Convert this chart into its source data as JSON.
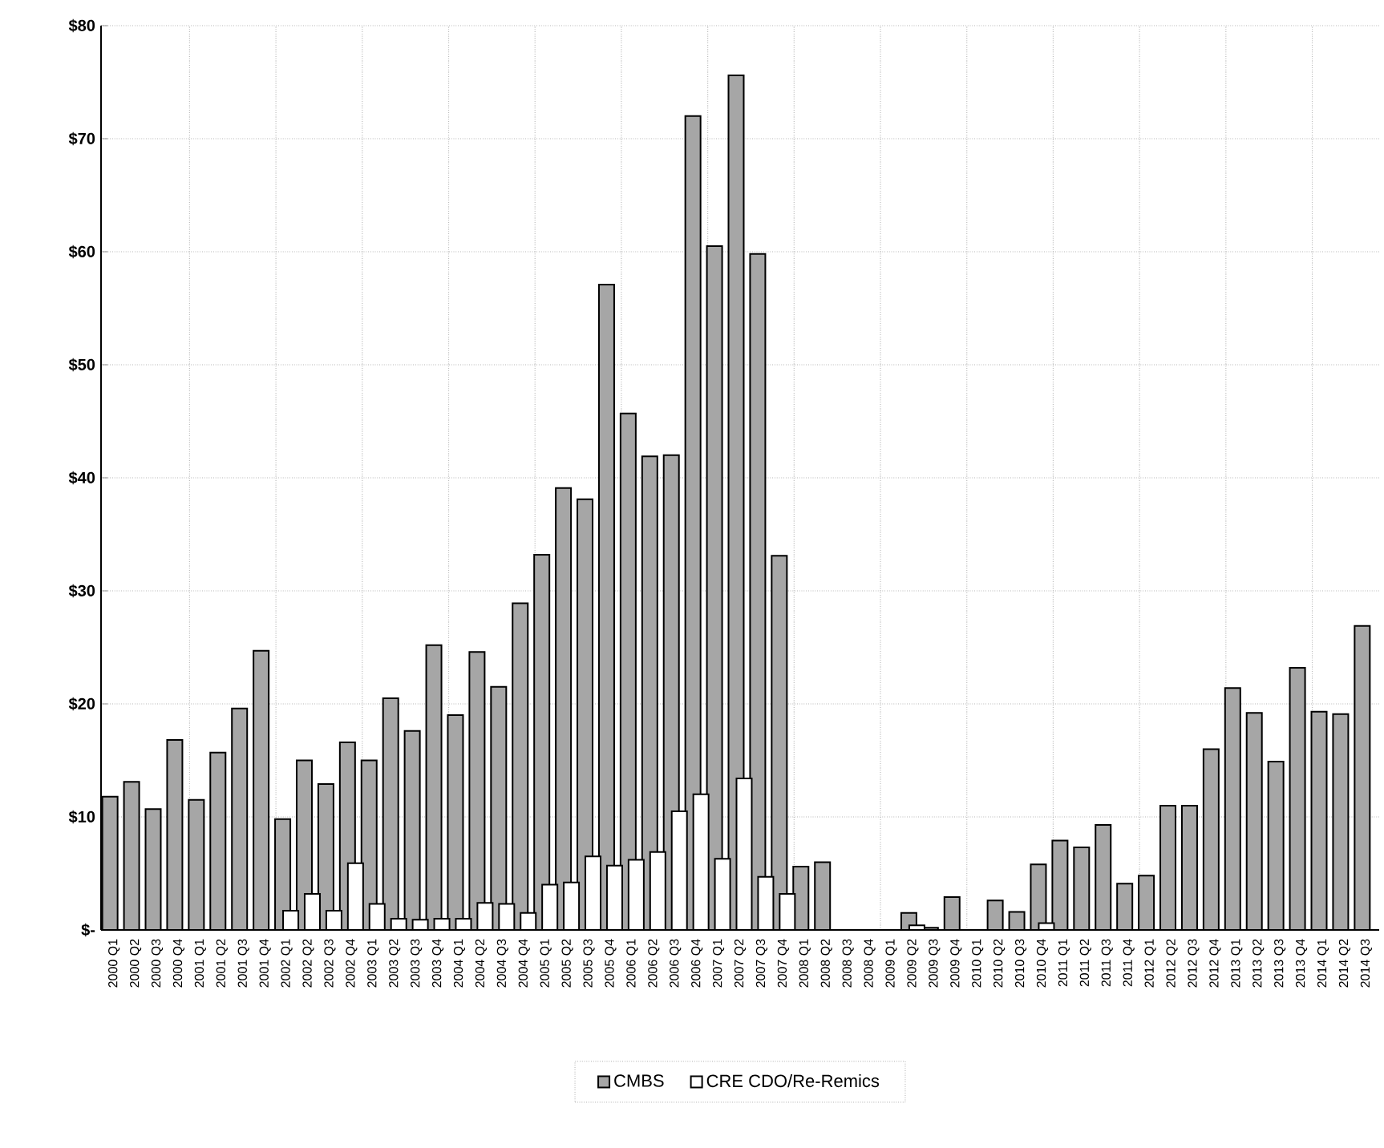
{
  "chart_data": {
    "type": "bar",
    "categories": [
      "2000 Q1",
      "2000 Q2",
      "2000 Q3",
      "2000 Q4",
      "2001 Q1",
      "2001 Q2",
      "2001 Q3",
      "2001 Q4",
      "2002 Q1",
      "2002 Q2",
      "2002 Q3",
      "2002 Q4",
      "2003 Q1",
      "2003 Q2",
      "2003 Q3",
      "2003 Q4",
      "2004 Q1",
      "2004 Q2",
      "2004 Q3",
      "2004 Q4",
      "2005 Q1",
      "2005 Q2",
      "2005 Q3",
      "2005 Q4",
      "2006 Q1",
      "2006 Q2",
      "2006 Q3",
      "2006 Q4",
      "2007 Q1",
      "2007 Q2",
      "2007 Q3",
      "2007 Q4",
      "2008 Q1",
      "2008 Q2",
      "2008 Q3",
      "2008 Q4",
      "2009 Q1",
      "2009 Q2",
      "2009 Q3",
      "2009 Q4",
      "2010 Q1",
      "2010 Q2",
      "2010 Q3",
      "2010 Q4",
      "2011 Q1",
      "2011 Q2",
      "2011 Q3",
      "2011 Q4",
      "2012 Q1",
      "2012 Q2",
      "2012 Q3",
      "2012 Q4",
      "2013 Q1",
      "2013 Q2",
      "2013 Q3",
      "2013 Q4",
      "2014 Q1",
      "2014 Q2",
      "2014 Q3"
    ],
    "series": [
      {
        "name": "CMBS",
        "color": "#a6a6a6",
        "values": [
          11.8,
          13.1,
          10.7,
          16.8,
          11.5,
          15.7,
          19.6,
          24.7,
          9.8,
          15.0,
          12.9,
          16.6,
          15.0,
          20.5,
          17.6,
          25.2,
          19.0,
          24.6,
          21.5,
          28.9,
          33.2,
          39.1,
          38.1,
          57.1,
          45.7,
          41.9,
          42.0,
          72.0,
          60.5,
          75.6,
          59.8,
          33.1,
          5.6,
          6.0,
          null,
          null,
          null,
          1.5,
          0.2,
          2.9,
          null,
          2.6,
          1.6,
          5.8,
          7.9,
          7.3,
          9.3,
          4.1,
          4.8,
          11.0,
          11.0,
          16.0,
          21.4,
          19.2,
          14.9,
          23.2,
          19.3,
          19.1,
          26.9
        ]
      },
      {
        "name": "CRE CDO/Re-Remics",
        "color": "#ffffff",
        "values": [
          null,
          null,
          null,
          null,
          null,
          null,
          null,
          null,
          1.7,
          3.2,
          1.7,
          5.9,
          2.3,
          1.0,
          0.9,
          1.0,
          1.0,
          2.4,
          2.3,
          1.5,
          4.0,
          4.2,
          6.5,
          5.7,
          6.2,
          6.9,
          10.5,
          12.0,
          6.3,
          13.4,
          4.7,
          3.2,
          null,
          null,
          null,
          null,
          null,
          0.4,
          null,
          null,
          null,
          null,
          null,
          0.6,
          null,
          null,
          null,
          null,
          null,
          null,
          null,
          null,
          null,
          null,
          null,
          null,
          null,
          null,
          null
        ]
      }
    ],
    "ylim": [
      0,
      80
    ],
    "yticks": [
      {
        "value": 0,
        "label": "$-"
      },
      {
        "value": 10,
        "label": "$10"
      },
      {
        "value": 20,
        "label": "$20"
      },
      {
        "value": 30,
        "label": "$30"
      },
      {
        "value": 40,
        "label": "$40"
      },
      {
        "value": 50,
        "label": "$50"
      },
      {
        "value": 60,
        "label": "$60"
      },
      {
        "value": 70,
        "label": "$70"
      },
      {
        "value": 80,
        "label": "$80"
      }
    ],
    "grid": true,
    "legend": "bottom"
  }
}
